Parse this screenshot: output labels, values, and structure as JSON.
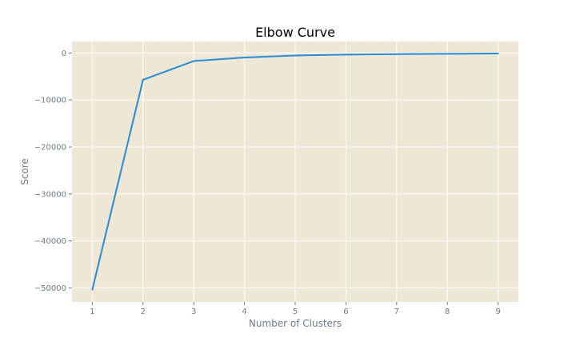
{
  "chart_data": {
    "type": "line",
    "title": "Elbow Curve",
    "xlabel": "Number of Clusters",
    "ylabel": "Score",
    "x": [
      1,
      2,
      3,
      4,
      5,
      6,
      7,
      8,
      9
    ],
    "series": [
      {
        "values": [
          -50400,
          -5700,
          -1700,
          -950,
          -520,
          -330,
          -230,
          -160,
          -100
        ]
      }
    ],
    "xticks": [
      "1",
      "2",
      "3",
      "4",
      "5",
      "6",
      "7",
      "8",
      "9"
    ],
    "yticks": [
      0,
      -10000,
      -20000,
      -30000,
      -40000,
      -50000
    ],
    "ytick_labels": [
      "0",
      "−10000",
      "−20000",
      "−30000",
      "−40000",
      "−50000"
    ],
    "xlim": [
      0.6,
      9.4
    ],
    "ylim": [
      -53000,
      2450
    ],
    "grid": true,
    "colors": {
      "background": "#eee7d5",
      "line": "#268bd2",
      "grid": "#ffffff"
    }
  }
}
